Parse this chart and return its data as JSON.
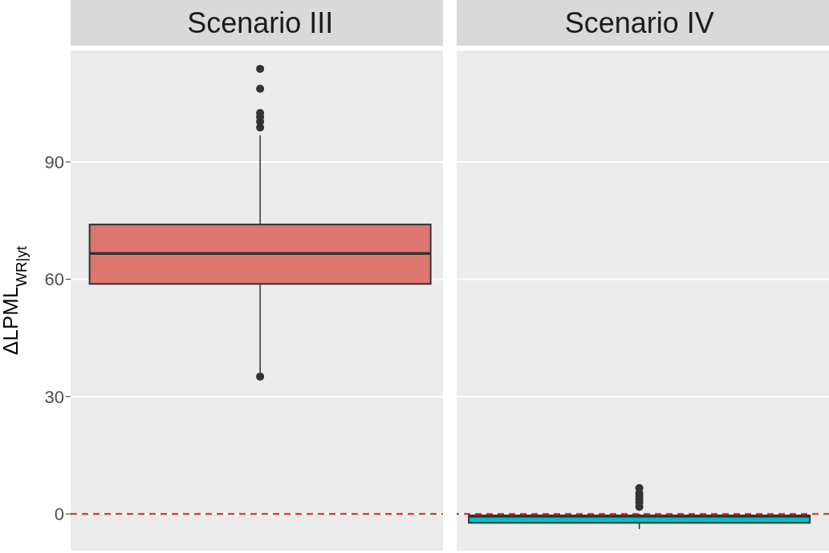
{
  "chart_data": {
    "type": "box",
    "ylabel": "ΔLPML$_{WR|yt}$",
    "categories": [
      "Scenario III",
      "Scenario IV"
    ],
    "series": [
      {
        "colors": [
          "#dc766f",
          "#00bfc4"
        ],
        "boxes": [
          {
            "low": 35.5,
            "q1": 58.8,
            "median": 66.6,
            "q3": 74.0,
            "high": 96.8,
            "outliers": [
              35.1,
              98.8,
              100.3,
              101.5,
              102.5,
              108.7,
              113.8
            ]
          },
          {
            "low": -3.9,
            "q1": -2.3,
            "median": -0.6,
            "q3": -0.4,
            "high": 0,
            "outliers": [
              1.8,
              2.9,
              3.7,
              4.5,
              5.3,
              6.6
            ]
          }
        ]
      }
    ],
    "ylim": [
      -9.6,
      118.7
    ],
    "yticks": [
      0,
      30,
      60,
      90
    ],
    "grid": "y",
    "ref_lines": [
      {
        "axis": "y",
        "value": 0,
        "color": "#e31a1c",
        "line_style": "dashed"
      }
    ]
  }
}
